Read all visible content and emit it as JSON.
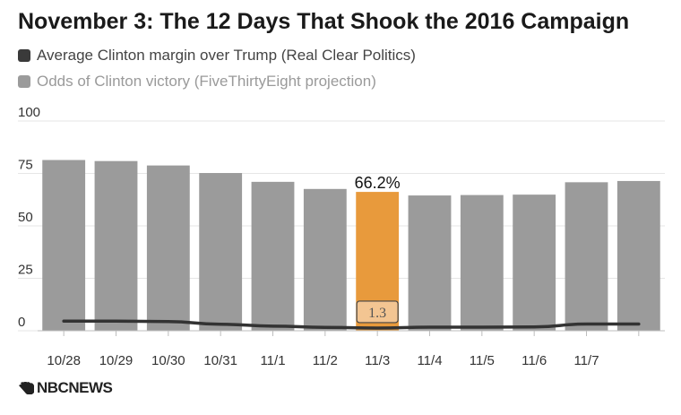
{
  "title": "November 3: The 12 Days That Shook the 2016 Campaign",
  "legend": [
    {
      "label": "Average Clinton margin over Trump (Real Clear Politics)",
      "color": "#3a3a3a"
    },
    {
      "label": "Odds of Clinton victory (FiveThirtyEight projection)",
      "color": "#9b9b9b"
    }
  ],
  "colors": {
    "bar": "#9b9b9b",
    "highlight": "#e89a3c",
    "line": "#333333",
    "grid": "#e6e6e6",
    "label_box": "#f3c592",
    "text": "#333333"
  },
  "logo": {
    "text": "NBCNEWS",
    "icon": "nbc-peacock-icon"
  },
  "chart_data": {
    "type": "bar",
    "categories": [
      "10/28",
      "10/29",
      "10/30",
      "10/31",
      "11/1",
      "11/2",
      "11/3",
      "11/4",
      "11/5",
      "11/6",
      "11/7",
      ""
    ],
    "series": [
      {
        "name": "Odds of Clinton victory (FiveThirtyEight projection)",
        "type": "bar",
        "values": [
          81.4,
          80.9,
          78.8,
          75.2,
          71.0,
          67.6,
          66.2,
          64.5,
          64.7,
          64.9,
          70.8,
          71.4
        ]
      },
      {
        "name": "Average Clinton margin over Trump (Real Clear Politics)",
        "type": "line",
        "values": [
          4.6,
          4.6,
          4.4,
          3.1,
          2.2,
          1.6,
          1.3,
          1.7,
          1.7,
          1.8,
          3.2,
          3.2
        ]
      }
    ],
    "highlight_index": 6,
    "annotations": {
      "bar_label": "66.2%",
      "line_label": "1.3"
    },
    "ylim": [
      0,
      100
    ],
    "yticks": [
      0,
      25,
      50,
      75,
      100
    ],
    "grid": true,
    "legend_position": "top-left"
  }
}
